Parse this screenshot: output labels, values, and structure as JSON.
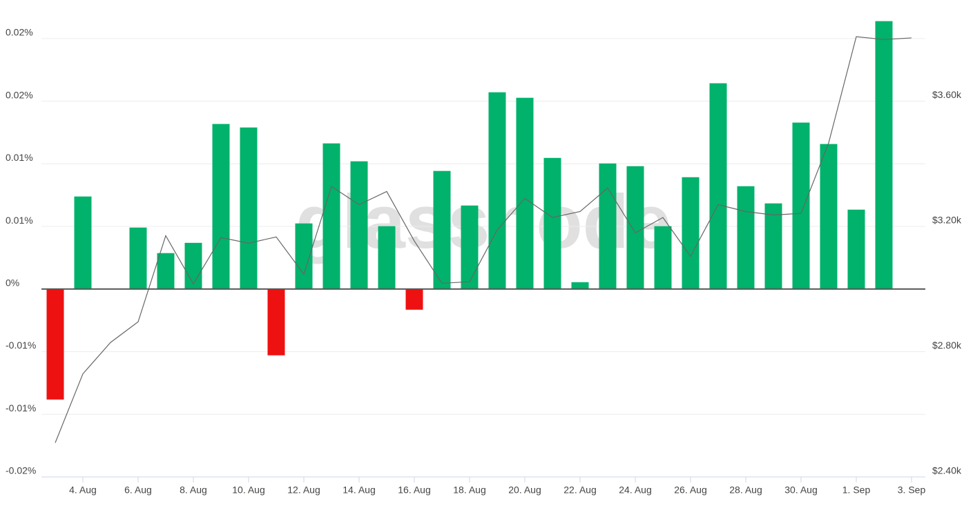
{
  "chart_data": {
    "type": "bar",
    "watermark": "glassnode",
    "categories": [
      null,
      "4. Aug",
      null,
      "6. Aug",
      null,
      "8. Aug",
      null,
      "10. Aug",
      null,
      "12. Aug",
      null,
      "14. Aug",
      null,
      "16. Aug",
      null,
      "18. Aug",
      null,
      "20. Aug",
      null,
      "22. Aug",
      null,
      "24. Aug",
      null,
      "26. Aug",
      null,
      "28. Aug",
      null,
      "30. Aug",
      null,
      "1. Sep",
      null,
      "3. Sep"
    ],
    "series": [
      {
        "type": "bar",
        "positive_color": "#00b26b",
        "negative_color": "#ee1111",
        "values": [
          -0.00882,
          0.00739,
          0,
          0.00491,
          0.00287,
          0.00369,
          0.01318,
          0.0129,
          -0.00529,
          0.00524,
          0.01163,
          0.0102,
          0.00502,
          -0.00165,
          0.00943,
          0.00667,
          0.01571,
          0.01527,
          0.01047,
          0.00055,
          0.01003,
          0.00981,
          0.00502,
          0.00893,
          0.01643,
          0.00821,
          0.00684,
          0.01329,
          0.01158,
          0.00634,
          0.02139,
          null
        ]
      },
      {
        "type": "line",
        "axis": "y2",
        "color": "#666666",
        "values": [
          2509,
          2729,
          2829,
          2895,
          3170,
          3016,
          3164,
          3146,
          3166,
          3047,
          3327,
          3269,
          3311,
          3153,
          3018,
          3023,
          3188,
          3289,
          3228,
          3247,
          3322,
          3179,
          3228,
          3104,
          3269,
          3247,
          3236,
          3241,
          3466,
          3805,
          3796,
          3801
        ]
      }
    ],
    "ylim": [
      -0.015,
      0.0217
    ],
    "yticks": [
      {
        "value": 0.02,
        "label": "0.02%"
      },
      {
        "value": 0.015,
        "label": "0.02%"
      },
      {
        "value": 0.01,
        "label": "0.01%"
      },
      {
        "value": 0.005,
        "label": "0.01%"
      },
      {
        "value": 0,
        "label": "0%"
      },
      {
        "value": -0.005,
        "label": "-0.01%"
      },
      {
        "value": -0.01,
        "label": "-0.01%"
      },
      {
        "value": -0.015,
        "label": "-0.02%"
      }
    ],
    "y2lim": [
      2400,
      3867
    ],
    "y2ticks": [
      {
        "value": 3600,
        "label": "$3.60k"
      },
      {
        "value": 3200,
        "label": "$3.20k"
      },
      {
        "value": 2800,
        "label": "$2.80k"
      },
      {
        "value": 2400,
        "label": "$2.40k"
      }
    ],
    "grid": true
  }
}
